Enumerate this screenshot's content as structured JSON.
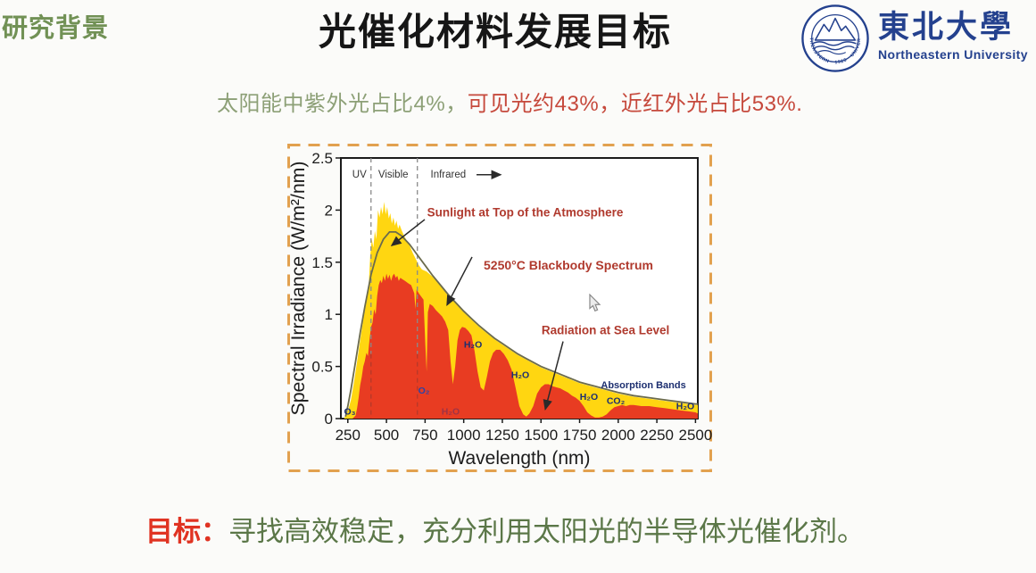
{
  "slide": {
    "background": "#fbfbf9"
  },
  "header": {
    "section_label": "研究背景",
    "section_color": "#719155",
    "title": "光催化材料发展目标",
    "title_color": "#161616"
  },
  "logo": {
    "ring_text": "NORTHEASTERN · 1923 · UNIVERSITY",
    "chinese_name": "東北大學",
    "english_name": "Northeastern University",
    "color": "#24418e"
  },
  "subtitle": {
    "part1": "太阳能中紫外光占比4%，",
    "part1_color": "#8da077",
    "part2": "可见光约43%，近红外光占比53%.",
    "part2_color": "#c6493c"
  },
  "goal": {
    "label": "目标：",
    "label_color": "#e03322",
    "text": "寻找高效稳定，充分利用太阳光的半导体光催化剂。",
    "text_color": "#5b7748"
  },
  "chart_data": {
    "type": "area",
    "xlabel": "Wavelength (nm)",
    "ylabel": "Spectral Irradiance (W/m²/nm)",
    "xlim": [
      205,
      2515
    ],
    "ylim": [
      0,
      2.5
    ],
    "x_ticks": [
      250,
      500,
      750,
      1000,
      1250,
      1500,
      1750,
      2000,
      2250,
      2500
    ],
    "y_ticks": [
      0,
      0.5,
      1,
      1.5,
      2,
      2.5
    ],
    "y_tick_labels": [
      "0",
      "0.5",
      "1",
      "1.5",
      "2",
      "2.5"
    ],
    "border_color": "#e2a14f",
    "frame_color": "#1b1b1b",
    "region_boundaries_nm": [
      400,
      700
    ],
    "regions": [
      {
        "label": "UV",
        "x": 325
      },
      {
        "label": "Visible",
        "x": 544
      },
      {
        "label": "Infrared",
        "x": 900
      }
    ],
    "series": [
      {
        "name": "Sunlight at Top of the Atmosphere",
        "style": "area",
        "color": "#ffd611",
        "points": [
          [
            225,
            0
          ],
          [
            250,
            0.07
          ],
          [
            270,
            0.18
          ],
          [
            290,
            0.35
          ],
          [
            310,
            0.55
          ],
          [
            330,
            0.75
          ],
          [
            350,
            0.95
          ],
          [
            370,
            1.12
          ],
          [
            385,
            1.28
          ],
          [
            395,
            1.56
          ],
          [
            405,
            1.72
          ],
          [
            415,
            1.64
          ],
          [
            425,
            1.8
          ],
          [
            435,
            1.72
          ],
          [
            445,
            2.0
          ],
          [
            455,
            1.93
          ],
          [
            465,
            2.03
          ],
          [
            475,
            1.96
          ],
          [
            485,
            2.08
          ],
          [
            495,
            1.96
          ],
          [
            505,
            2.03
          ],
          [
            515,
            1.92
          ],
          [
            525,
            1.97
          ],
          [
            535,
            1.87
          ],
          [
            545,
            1.93
          ],
          [
            555,
            1.85
          ],
          [
            565,
            1.9
          ],
          [
            575,
            1.82
          ],
          [
            585,
            1.86
          ],
          [
            600,
            1.8
          ],
          [
            615,
            1.75
          ],
          [
            630,
            1.71
          ],
          [
            650,
            1.66
          ],
          [
            670,
            1.59
          ],
          [
            690,
            1.53
          ],
          [
            710,
            1.47
          ],
          [
            730,
            1.43
          ],
          [
            760,
            1.41
          ],
          [
            800,
            1.36
          ],
          [
            850,
            1.27
          ],
          [
            900,
            1.18
          ],
          [
            950,
            1.1
          ],
          [
            1000,
            1.02
          ],
          [
            1050,
            0.95
          ],
          [
            1100,
            0.88
          ],
          [
            1150,
            0.82
          ],
          [
            1200,
            0.76
          ],
          [
            1250,
            0.71
          ],
          [
            1300,
            0.66
          ],
          [
            1350,
            0.61
          ],
          [
            1400,
            0.57
          ],
          [
            1450,
            0.53
          ],
          [
            1500,
            0.49
          ],
          [
            1550,
            0.46
          ],
          [
            1600,
            0.43
          ],
          [
            1650,
            0.4
          ],
          [
            1700,
            0.37
          ],
          [
            1750,
            0.34
          ],
          [
            1800,
            0.32
          ],
          [
            1850,
            0.3
          ],
          [
            1900,
            0.28
          ],
          [
            1950,
            0.26
          ],
          [
            2000,
            0.24
          ],
          [
            2100,
            0.21
          ],
          [
            2200,
            0.19
          ],
          [
            2300,
            0.17
          ],
          [
            2400,
            0.15
          ],
          [
            2500,
            0.13
          ],
          [
            2515,
            0.13
          ]
        ]
      },
      {
        "name": "5250°C Blackbody Spectrum",
        "style": "line",
        "color": "#6b6b4d",
        "points": [
          [
            235,
            0.02
          ],
          [
            250,
            0.12
          ],
          [
            270,
            0.28
          ],
          [
            300,
            0.55
          ],
          [
            330,
            0.82
          ],
          [
            360,
            1.07
          ],
          [
            400,
            1.38
          ],
          [
            440,
            1.59
          ],
          [
            480,
            1.72
          ],
          [
            520,
            1.79
          ],
          [
            560,
            1.79
          ],
          [
            600,
            1.75
          ],
          [
            650,
            1.67
          ],
          [
            700,
            1.57
          ],
          [
            750,
            1.47
          ],
          [
            800,
            1.37
          ],
          [
            850,
            1.28
          ],
          [
            900,
            1.19
          ],
          [
            950,
            1.11
          ],
          [
            1000,
            1.03
          ],
          [
            1050,
            0.96
          ],
          [
            1100,
            0.89
          ],
          [
            1150,
            0.83
          ],
          [
            1200,
            0.77
          ],
          [
            1250,
            0.72
          ],
          [
            1300,
            0.67
          ],
          [
            1350,
            0.62
          ],
          [
            1400,
            0.58
          ],
          [
            1450,
            0.54
          ],
          [
            1500,
            0.5
          ],
          [
            1550,
            0.47
          ],
          [
            1600,
            0.44
          ],
          [
            1650,
            0.41
          ],
          [
            1700,
            0.38
          ],
          [
            1750,
            0.35
          ],
          [
            1800,
            0.33
          ],
          [
            1850,
            0.31
          ],
          [
            1900,
            0.29
          ],
          [
            1950,
            0.27
          ],
          [
            2000,
            0.25
          ],
          [
            2100,
            0.22
          ],
          [
            2200,
            0.2
          ],
          [
            2300,
            0.18
          ],
          [
            2400,
            0.16
          ],
          [
            2500,
            0.14
          ],
          [
            2515,
            0.14
          ]
        ]
      },
      {
        "name": "Radiation at Sea Level",
        "style": "area",
        "color": "#e83c22",
        "points": [
          [
            280,
            0
          ],
          [
            300,
            0.03
          ],
          [
            310,
            0.1
          ],
          [
            320,
            0.2
          ],
          [
            330,
            0.32
          ],
          [
            340,
            0.4
          ],
          [
            350,
            0.5
          ],
          [
            360,
            0.55
          ],
          [
            370,
            0.63
          ],
          [
            380,
            0.6
          ],
          [
            390,
            0.75
          ],
          [
            400,
            0.88
          ],
          [
            410,
            0.92
          ],
          [
            420,
            1.05
          ],
          [
            430,
            1.0
          ],
          [
            440,
            1.18
          ],
          [
            450,
            1.28
          ],
          [
            460,
            1.33
          ],
          [
            470,
            1.3
          ],
          [
            480,
            1.37
          ],
          [
            490,
            1.32
          ],
          [
            500,
            1.39
          ],
          [
            510,
            1.34
          ],
          [
            520,
            1.38
          ],
          [
            530,
            1.32
          ],
          [
            540,
            1.37
          ],
          [
            550,
            1.39
          ],
          [
            560,
            1.35
          ],
          [
            570,
            1.37
          ],
          [
            580,
            1.32
          ],
          [
            590,
            1.35
          ],
          [
            600,
            1.34
          ],
          [
            620,
            1.32
          ],
          [
            640,
            1.3
          ],
          [
            660,
            1.28
          ],
          [
            680,
            1.2
          ],
          [
            687,
            1.05
          ],
          [
            695,
            1.24
          ],
          [
            710,
            1.2
          ],
          [
            725,
            1.17
          ],
          [
            740,
            1.14
          ],
          [
            752,
            0.7
          ],
          [
            760,
            0.45
          ],
          [
            768,
            1.02
          ],
          [
            780,
            1.1
          ],
          [
            800,
            1.08
          ],
          [
            820,
            1.04
          ],
          [
            840,
            1.01
          ],
          [
            860,
            0.98
          ],
          [
            880,
            0.93
          ],
          [
            900,
            0.85
          ],
          [
            915,
            0.55
          ],
          [
            930,
            0.33
          ],
          [
            945,
            0.5
          ],
          [
            960,
            0.75
          ],
          [
            975,
            0.85
          ],
          [
            990,
            0.88
          ],
          [
            1010,
            0.87
          ],
          [
            1030,
            0.84
          ],
          [
            1050,
            0.8
          ],
          [
            1070,
            0.65
          ],
          [
            1090,
            0.45
          ],
          [
            1110,
            0.3
          ],
          [
            1130,
            0.27
          ],
          [
            1150,
            0.4
          ],
          [
            1170,
            0.55
          ],
          [
            1190,
            0.63
          ],
          [
            1210,
            0.66
          ],
          [
            1235,
            0.66
          ],
          [
            1260,
            0.62
          ],
          [
            1285,
            0.56
          ],
          [
            1310,
            0.47
          ],
          [
            1335,
            0.3
          ],
          [
            1360,
            0.12
          ],
          [
            1385,
            0.04
          ],
          [
            1405,
            0.02
          ],
          [
            1425,
            0.05
          ],
          [
            1450,
            0.12
          ],
          [
            1475,
            0.24
          ],
          [
            1500,
            0.3
          ],
          [
            1525,
            0.33
          ],
          [
            1550,
            0.33
          ],
          [
            1575,
            0.31
          ],
          [
            1600,
            0.3
          ],
          [
            1625,
            0.29
          ],
          [
            1650,
            0.27
          ],
          [
            1675,
            0.25
          ],
          [
            1700,
            0.22
          ],
          [
            1725,
            0.2
          ],
          [
            1750,
            0.17
          ],
          [
            1775,
            0.12
          ],
          [
            1800,
            0.06
          ],
          [
            1825,
            0.03
          ],
          [
            1850,
            0.01
          ],
          [
            1875,
            0.01
          ],
          [
            1900,
            0.02
          ],
          [
            1925,
            0.04
          ],
          [
            1950,
            0.08
          ],
          [
            1975,
            0.11
          ],
          [
            2000,
            0.12
          ],
          [
            2025,
            0.13
          ],
          [
            2050,
            0.12
          ],
          [
            2075,
            0.13
          ],
          [
            2100,
            0.13
          ],
          [
            2150,
            0.12
          ],
          [
            2200,
            0.12
          ],
          [
            2250,
            0.11
          ],
          [
            2300,
            0.1
          ],
          [
            2350,
            0.09
          ],
          [
            2400,
            0.08
          ],
          [
            2450,
            0.07
          ],
          [
            2500,
            0.06
          ],
          [
            2515,
            0.05
          ]
        ]
      }
    ],
    "annotations": [
      {
        "text": "Sunlight at Top of the Atmosphere",
        "x": 763,
        "y": 1.94,
        "color": "#b03a2e",
        "size": 13.5,
        "bold": true,
        "anchor": "start"
      },
      {
        "text": "5250°C Blackbody Spectrum",
        "x": 1129,
        "y": 1.43,
        "color": "#b03a2e",
        "size": 14,
        "bold": true,
        "anchor": "start"
      },
      {
        "text": "Radiation at Sea Level",
        "x": 1504,
        "y": 0.81,
        "color": "#b03a2e",
        "size": 13.5,
        "bold": true,
        "anchor": "start"
      },
      {
        "text": "Absorption Bands",
        "x": 2163,
        "y": 0.29,
        "color": "#1d2f70",
        "size": 11,
        "bold": true,
        "anchor": "middle"
      },
      {
        "text": "O₃",
        "x": 263,
        "y": 0.04,
        "color": "#1d2f70",
        "size": 10.5,
        "bold": true,
        "anchor": "middle"
      },
      {
        "text": "O₂",
        "x": 742,
        "y": 0.24,
        "color": "#2b43a8",
        "size": 10.5,
        "bold": true,
        "anchor": "middle"
      },
      {
        "text": "H₂O",
        "x": 915,
        "y": 0.04,
        "color": "#a03344",
        "size": 10.5,
        "bold": true,
        "anchor": "middle"
      },
      {
        "text": "H₂O",
        "x": 1060,
        "y": 0.68,
        "color": "#1d2f70",
        "size": 10.5,
        "bold": true,
        "anchor": "middle"
      },
      {
        "text": "H₂O",
        "x": 1366,
        "y": 0.39,
        "color": "#1d2f70",
        "size": 10.5,
        "bold": true,
        "anchor": "middle"
      },
      {
        "text": "H₂O",
        "x": 1810,
        "y": 0.18,
        "color": "#1d2f70",
        "size": 10.5,
        "bold": true,
        "anchor": "middle"
      },
      {
        "text": "CO₂",
        "x": 1984,
        "y": 0.14,
        "color": "#1d2f70",
        "size": 10.5,
        "bold": true,
        "anchor": "middle"
      },
      {
        "text": "H₂O",
        "x": 2434,
        "y": 0.09,
        "color": "#1d2f70",
        "size": 10.5,
        "bold": true,
        "anchor": "middle"
      }
    ],
    "arrows": [
      {
        "from": [
          1083,
          2.34
        ],
        "to": [
          1239,
          2.34
        ]
      },
      {
        "from": [
          748,
          1.91
        ],
        "to": [
          534,
          1.66
        ]
      },
      {
        "from": [
          1054,
          1.55
        ],
        "to": [
          892,
          1.09
        ]
      },
      {
        "from": [
          1643,
          0.74
        ],
        "to": [
          1528,
          0.09
        ]
      }
    ]
  }
}
